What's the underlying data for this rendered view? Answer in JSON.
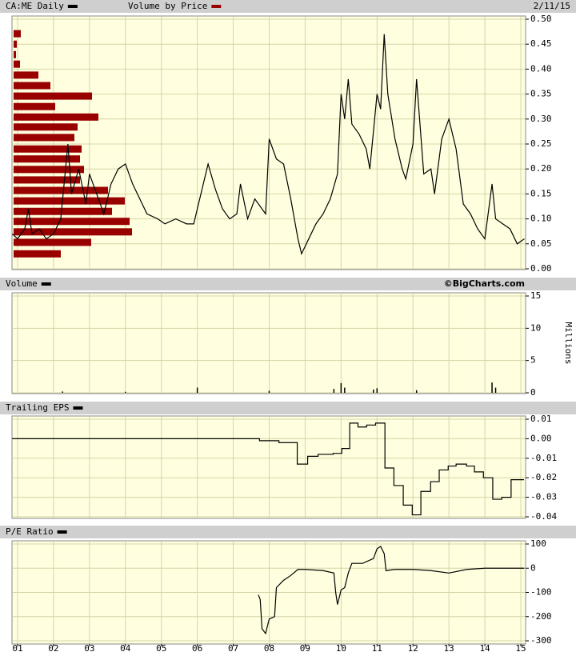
{
  "x_axis": {
    "xlim": [
      2001,
      2015
    ],
    "xticks": [
      {
        "value": 2001,
        "label": "01"
      },
      {
        "value": 2002,
        "label": "02"
      },
      {
        "value": 2003,
        "label": "03"
      },
      {
        "value": 2004,
        "label": "04"
      },
      {
        "value": 2005,
        "label": "05"
      },
      {
        "value": 2006,
        "label": "06"
      },
      {
        "value": 2007,
        "label": "07"
      },
      {
        "value": 2008,
        "label": "08"
      },
      {
        "value": 2009,
        "label": "09"
      },
      {
        "value": 2010,
        "label": "10"
      },
      {
        "value": 2011,
        "label": "11"
      },
      {
        "value": 2012,
        "label": "12"
      },
      {
        "value": 2013,
        "label": "13"
      },
      {
        "value": 2014,
        "label": "14"
      },
      {
        "value": 2015,
        "label": "15"
      }
    ]
  },
  "chart_data": [
    {
      "type": "line",
      "date_label": "2/11/15",
      "ylim": [
        0,
        0.5
      ],
      "yticks": [
        {
          "value": 0,
          "label": "0.00"
        },
        {
          "value": 0.05,
          "label": "0.05"
        },
        {
          "value": 0.1,
          "label": "0.10"
        },
        {
          "value": 0.15,
          "label": "0.15"
        },
        {
          "value": 0.2,
          "label": "0.20"
        },
        {
          "value": 0.25,
          "label": "0.25"
        },
        {
          "value": 0.3,
          "label": "0.30"
        },
        {
          "value": 0.35,
          "label": "0.35"
        },
        {
          "value": 0.4,
          "label": "0.40"
        },
        {
          "value": 0.45,
          "label": "0.45"
        },
        {
          "value": 0.5,
          "label": "0.50"
        }
      ],
      "grid": true,
      "series": [
        {
          "name": "CA:ME Daily",
          "color": "#000000",
          "x": [
            2000.85,
            2001.0,
            2001.2,
            2001.3,
            2001.4,
            2001.6,
            2001.8,
            2002.0,
            2002.2,
            2002.4,
            2002.5,
            2002.7,
            2002.9,
            2003.0,
            2003.2,
            2003.4,
            2003.6,
            2003.8,
            2004.0,
            2004.2,
            2004.4,
            2004.6,
            2004.9,
            2005.1,
            2005.4,
            2005.7,
            2005.9,
            2006.1,
            2006.3,
            2006.5,
            2006.7,
            2006.9,
            2007.1,
            2007.2,
            2007.4,
            2007.6,
            2007.8,
            2007.9,
            2008.0,
            2008.2,
            2008.4,
            2008.6,
            2008.8,
            2008.9,
            2009.1,
            2009.3,
            2009.5,
            2009.7,
            2009.9,
            2010.0,
            2010.1,
            2010.2,
            2010.3,
            2010.5,
            2010.7,
            2010.8,
            2011.0,
            2011.1,
            2011.2,
            2011.3,
            2011.5,
            2011.7,
            2011.8,
            2012.0,
            2012.1,
            2012.3,
            2012.5,
            2012.6,
            2012.8,
            2013.0,
            2013.2,
            2013.4,
            2013.6,
            2013.8,
            2014.0,
            2014.2,
            2014.3,
            2014.5,
            2014.7,
            2014.9,
            2015.1
          ],
          "values": [
            0.07,
            0.06,
            0.08,
            0.12,
            0.07,
            0.08,
            0.06,
            0.07,
            0.1,
            0.25,
            0.15,
            0.2,
            0.13,
            0.19,
            0.15,
            0.11,
            0.17,
            0.2,
            0.21,
            0.17,
            0.14,
            0.11,
            0.1,
            0.09,
            0.1,
            0.09,
            0.09,
            0.15,
            0.21,
            0.16,
            0.12,
            0.1,
            0.11,
            0.17,
            0.1,
            0.14,
            0.12,
            0.11,
            0.26,
            0.22,
            0.21,
            0.14,
            0.06,
            0.03,
            0.06,
            0.09,
            0.11,
            0.14,
            0.19,
            0.35,
            0.3,
            0.38,
            0.29,
            0.27,
            0.24,
            0.2,
            0.35,
            0.32,
            0.47,
            0.35,
            0.26,
            0.2,
            0.18,
            0.25,
            0.38,
            0.19,
            0.2,
            0.15,
            0.26,
            0.3,
            0.24,
            0.13,
            0.11,
            0.08,
            0.06,
            0.17,
            0.1,
            0.09,
            0.08,
            0.05,
            0.06
          ]
        }
      ],
      "volume_by_price": {
        "name": "Volume by Price",
        "color": "#990000",
        "prices": [
          0.471,
          0.45,
          0.429,
          0.41,
          0.388,
          0.367,
          0.346,
          0.325,
          0.304,
          0.284,
          0.263,
          0.24,
          0.22,
          0.199,
          0.178,
          0.157,
          0.136,
          0.115,
          0.095,
          0.074,
          0.053,
          0.03
        ],
        "values": [
          9,
          4,
          3,
          8,
          31,
          46,
          98,
          52,
          106,
          80,
          76,
          85,
          83,
          88,
          83,
          118,
          139,
          123,
          145,
          148,
          97,
          59
        ]
      }
    },
    {
      "type": "bar",
      "title": "Volume",
      "credit": "©BigCharts.com",
      "axis_label": "Millions",
      "ylim": [
        0,
        15
      ],
      "yticks": [
        0,
        5,
        10,
        15
      ],
      "grid": true,
      "color": "#000000",
      "x": [
        2002.25,
        2004.0,
        2006.0,
        2008.0,
        2009.8,
        2010.0,
        2010.1,
        2010.9,
        2011.0,
        2012.1,
        2014.2,
        2014.3
      ],
      "values": [
        0.2,
        0.15,
        0.8,
        0.3,
        0.6,
        1.5,
        0.8,
        0.5,
        0.7,
        0.4,
        1.6,
        0.8
      ]
    },
    {
      "type": "step",
      "title": "Trailing EPS",
      "ylim": [
        -0.04,
        0.01
      ],
      "yticks": [
        {
          "value": -0.04,
          "label": "-0.04"
        },
        {
          "value": -0.03,
          "label": "-0.03"
        },
        {
          "value": -0.02,
          "label": "-0.02"
        },
        {
          "value": -0.01,
          "label": "-0.01"
        },
        {
          "value": 0,
          "label": "0.00"
        },
        {
          "value": 0.01,
          "label": "0.01"
        }
      ],
      "grid": true,
      "color": "#000000",
      "x": [
        2000.85,
        2007.73,
        2008.27,
        2008.78,
        2009.07,
        2009.36,
        2009.78,
        2010.02,
        2010.24,
        2010.47,
        2010.71,
        2010.96,
        2011.22,
        2011.47,
        2011.73,
        2011.98,
        2012.22,
        2012.49,
        2012.73,
        2012.98,
        2013.2,
        2013.49,
        2013.71,
        2013.96,
        2014.22,
        2014.47,
        2014.73,
        2015.07
      ],
      "values": [
        0,
        -0.001,
        -0.002,
        -0.013,
        -0.009,
        -0.008,
        -0.0075,
        -0.005,
        0.008,
        0.006,
        0.007,
        0.008,
        -0.015,
        -0.024,
        -0.034,
        -0.039,
        -0.027,
        -0.022,
        -0.016,
        -0.014,
        -0.013,
        -0.014,
        -0.017,
        -0.02,
        -0.031,
        -0.03,
        -0.021,
        -0.021
      ]
    },
    {
      "type": "line",
      "title": "P/E Ratio",
      "ylim": [
        -300,
        100
      ],
      "yticks": [
        -300,
        -200,
        -100,
        0,
        100
      ],
      "grid": true,
      "color": "#000000",
      "x": [
        2007.7,
        2007.75,
        2007.8,
        2007.9,
        2008.0,
        2008.15,
        2008.2,
        2008.4,
        2008.6,
        2008.8,
        2009.0,
        2009.5,
        2009.8,
        2009.85,
        2009.9,
        2010.0,
        2010.1,
        2010.2,
        2010.3,
        2010.6,
        2010.9,
        2011.0,
        2011.1,
        2011.2,
        2011.25,
        2011.5,
        2012.0,
        2012.5,
        2013.0,
        2013.5,
        2014.0,
        2015.1
      ],
      "values": [
        -110,
        -130,
        -250,
        -270,
        -210,
        -200,
        -80,
        -50,
        -30,
        -5,
        -5,
        -10,
        -20,
        -100,
        -150,
        -90,
        -80,
        -20,
        20,
        20,
        40,
        80,
        90,
        60,
        -10,
        -5,
        -5,
        -10,
        -20,
        -5,
        0,
        0
      ]
    }
  ]
}
